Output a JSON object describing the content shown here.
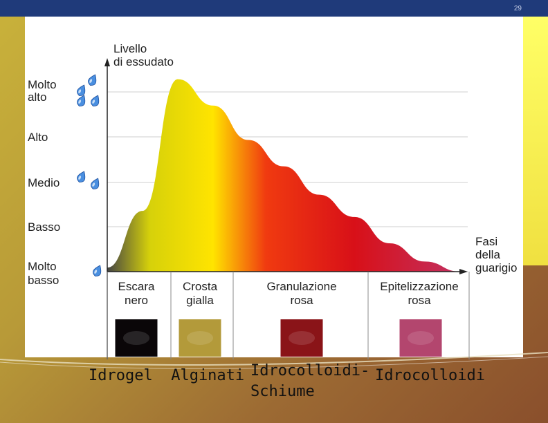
{
  "slide": {
    "number": "29"
  },
  "chart_data": {
    "type": "area",
    "ylabel": [
      "Livello",
      "di essudato"
    ],
    "xlabel": [
      "Fasi",
      "della",
      "guarigio"
    ],
    "y_levels": [
      {
        "label": [
          "Molto",
          "alto"
        ],
        "drops": 4
      },
      {
        "label": [
          "Alto"
        ],
        "drops": 0
      },
      {
        "label": [
          "Medio"
        ],
        "drops": 2
      },
      {
        "label": [
          "Basso"
        ],
        "drops": 0
      },
      {
        "label": [
          "Molto",
          "basso"
        ],
        "drops": 1
      }
    ],
    "phases": [
      {
        "label": [
          "Escara",
          "nero"
        ],
        "color": "#0a0608"
      },
      {
        "label": [
          "Crosta",
          "gialla"
        ],
        "color": "#b39a3a"
      },
      {
        "label": [
          "Granulazione",
          "rosa"
        ],
        "color": "#8a1418"
      },
      {
        "label": [
          "Epitelizzazione",
          "rosa"
        ],
        "color": "#b3466e"
      }
    ],
    "curve": {
      "x": [
        0,
        0.1,
        0.2,
        0.3,
        0.4,
        0.5,
        0.6,
        0.7,
        0.8,
        0.9,
        1.0
      ],
      "y": [
        0.02,
        0.3,
        0.95,
        0.82,
        0.65,
        0.52,
        0.38,
        0.27,
        0.14,
        0.05,
        0.0
      ]
    },
    "gradient_colors": [
      "#444444",
      "#d6d10a",
      "#ffe400",
      "#f03a10",
      "#d81018",
      "#c23060"
    ]
  },
  "dressings": [
    "Idrogel  Alginati",
    "Idrocolloidi-",
    "Schiume",
    "Idrocolloidi"
  ]
}
